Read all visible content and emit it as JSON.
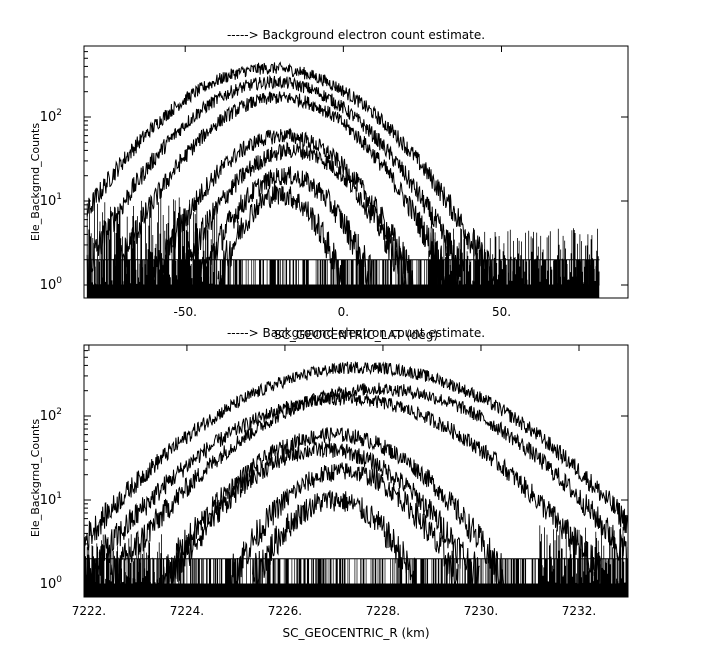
{
  "colors": {
    "background": "#ffffff",
    "ink": "#000000"
  },
  "chart_data": [
    {
      "type": "line",
      "title": "-----> Background electron count estimate.",
      "xlabel": "SC_GEOCENTRIC_LAT (deg)",
      "ylabel": "Ele_Backgrnd_Counts",
      "x_ticks": [
        "-50.",
        "0.",
        "50."
      ],
      "x_tick_values": [
        -50,
        0,
        50
      ],
      "y_scale": "log",
      "y_ticks": [
        "1",
        "10",
        "100"
      ],
      "y_tick_values": [
        1,
        10,
        100
      ],
      "xlim": [
        -82,
        90
      ],
      "ylim": [
        0.7,
        700
      ],
      "grid": false,
      "data_range": [
        -81,
        81
      ],
      "noise_floor": {
        "x": [
          -81,
          81
        ],
        "levels": [
          1,
          2
        ]
      },
      "noisy_regions": [
        {
          "x": [
            -81,
            -40
          ],
          "max": 12
        },
        {
          "x": [
            27,
            81
          ],
          "max": 5
        }
      ],
      "series": [
        {
          "center": -23,
          "peak": 380,
          "width": 37
        },
        {
          "center": -22,
          "peak": 260,
          "width": 33
        },
        {
          "center": -20,
          "peak": 170,
          "width": 30
        },
        {
          "center": -19,
          "peak": 60,
          "width": 26
        },
        {
          "center": -16,
          "peak": 40,
          "width": 24
        },
        {
          "center": -18,
          "peak": 20,
          "width": 20
        },
        {
          "center": -20,
          "peak": 12,
          "width": 16
        }
      ]
    },
    {
      "type": "line",
      "title": "-----> Background electron count estimate.",
      "xlabel": "SC_GEOCENTRIC_R (km)",
      "ylabel": "Ele_Backgrnd_Counts",
      "x_ticks": [
        "7222.",
        "7224.",
        "7226.",
        "7228.",
        "7230.",
        "7232."
      ],
      "x_tick_values": [
        7222,
        7224,
        7226,
        7228,
        7230,
        7232
      ],
      "y_scale": "log",
      "y_ticks": [
        "1",
        "10",
        "100"
      ],
      "y_tick_values": [
        1,
        10,
        100
      ],
      "xlim": [
        7221.9,
        7233.0
      ],
      "ylim": [
        0.7,
        700
      ],
      "grid": false,
      "data_range": [
        7221.9,
        7233.0
      ],
      "noise_floor": {
        "x": [
          7221.9,
          7233.0
        ],
        "levels": [
          1,
          2
        ]
      },
      "noisy_regions": [
        {
          "x": [
            7221.9,
            7223.5
          ],
          "max": 4
        },
        {
          "x": [
            7231.2,
            7233.0
          ],
          "max": 5
        }
      ],
      "series": [
        {
          "center": 7227.6,
          "peak": 380,
          "width": 3.3
        },
        {
          "center": 7227.9,
          "peak": 210,
          "width": 3.0
        },
        {
          "center": 7227.2,
          "peak": 160,
          "width": 3.0
        },
        {
          "center": 7227.0,
          "peak": 60,
          "width": 2.2
        },
        {
          "center": 7226.8,
          "peak": 40,
          "width": 2.1
        },
        {
          "center": 7227.2,
          "peak": 22,
          "width": 1.7
        },
        {
          "center": 7227.0,
          "peak": 10,
          "width": 1.4
        }
      ]
    }
  ]
}
